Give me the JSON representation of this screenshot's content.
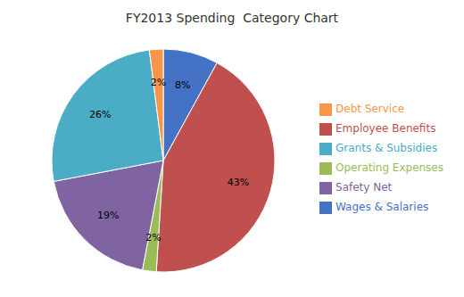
{
  "chart_data": {
    "type": "pie",
    "title": "FY2013 Spending  Category Chart",
    "categories": [
      "Wages & Salaries",
      "Employee Benefits",
      "Operating Expenses",
      "Safety Net",
      "Grants & Subsidies",
      "Debt Service"
    ],
    "values": [
      8,
      43,
      2,
      19,
      26,
      2
    ],
    "value_labels": [
      "8%",
      "43%",
      "2%",
      "19%",
      "26%",
      "2%"
    ],
    "colors": [
      "#4472C4",
      "#C0504D",
      "#9BBB59",
      "#8064A2",
      "#4BACC6",
      "#F79646"
    ],
    "legend": "right",
    "data_labels": true
  }
}
